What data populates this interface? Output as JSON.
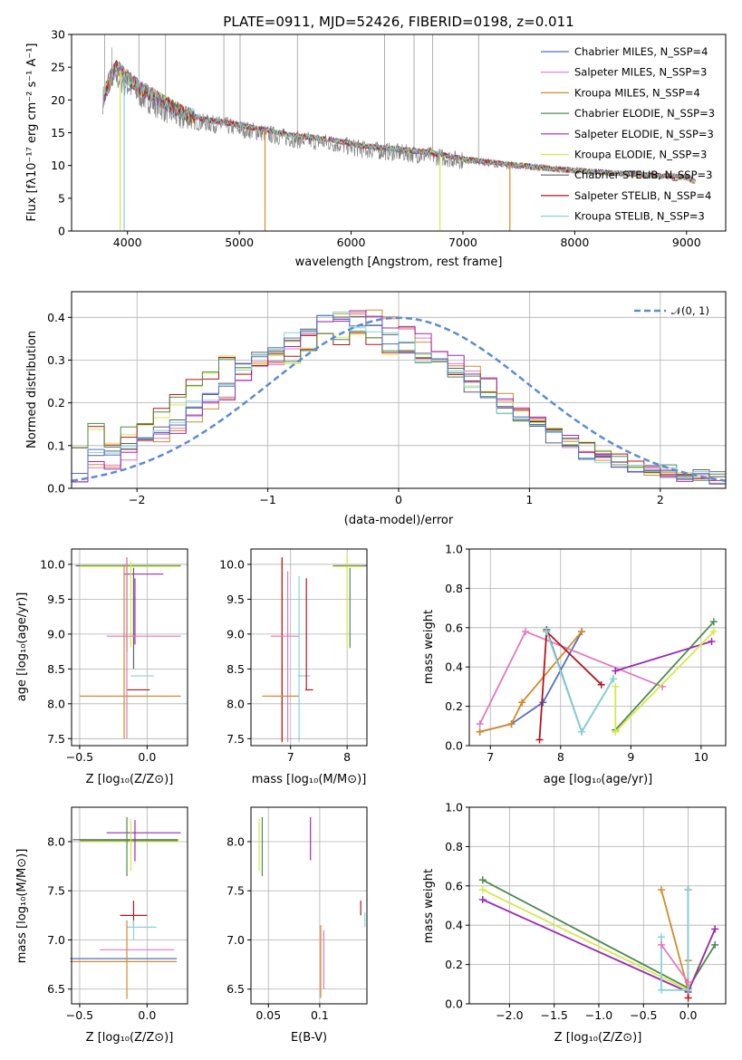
{
  "figure": {
    "title": "PLATE=0911, MJD=52426, FIBERID=0198, z=0.011"
  },
  "chart_data": [
    {
      "id": "spectrum",
      "type": "line",
      "xlabel": "wavelength [Angstrom, rest frame]",
      "ylabel": "Flux [fλ10⁻¹⁷ erg cm⁻² s⁻¹ A⁻¹]",
      "xlim": [
        3500,
        9350
      ],
      "ylim": [
        0,
        30
      ],
      "xticks": [
        4000,
        5000,
        6000,
        7000,
        8000,
        9000
      ],
      "yticks": [
        0,
        5,
        10,
        15,
        20,
        25,
        30
      ],
      "grid": false,
      "legend_loc": "upper right",
      "data_series": {
        "name": "",
        "color": "#808080",
        "x": [
          3780,
          3850,
          3950,
          4100,
          4300,
          4500,
          4700,
          4900,
          5200,
          5500,
          5800,
          6100,
          6400,
          6700,
          7000,
          7400,
          7800,
          8200,
          8600,
          9000,
          9080
        ],
        "y": [
          20,
          24,
          23,
          21,
          19,
          17,
          16.5,
          16,
          15,
          14,
          13.5,
          12.5,
          12,
          11.5,
          10.8,
          10,
          9.5,
          9,
          8.6,
          8.2,
          7.5
        ]
      },
      "series": [
        {
          "name": "Chabrier MILES, N_SSP=4",
          "color": "#4f6fc4"
        },
        {
          "name": "Salpeter MILES, N_SSP=3",
          "color": "#e377c2"
        },
        {
          "name": "Kroupa MILES, N_SSP=4",
          "color": "#d28a2a"
        },
        {
          "name": "Chabrier ELODIE, N_SSP=3",
          "color": "#4e8a4e"
        },
        {
          "name": "Salpeter ELODIE, N_SSP=3",
          "color": "#9b2ab5"
        },
        {
          "name": "Kroupa ELODIE, N_SSP=3",
          "color": "#d6e84a"
        },
        {
          "name": "Chabrier STELIB, N_SSP=3",
          "color": "#606060"
        },
        {
          "name": "Salpeter STELIB, N_SSP=4",
          "color": "#b2161f"
        },
        {
          "name": "Kroupa STELIB, N_SSP=3",
          "color": "#86d3d8"
        }
      ],
      "model_flux": {
        "x": [
          3780,
          3900,
          4100,
          4300,
          4500,
          4700,
          4900,
          5200,
          5500,
          5800,
          6100,
          6400,
          6700,
          7000,
          7400,
          7800,
          8200,
          8600,
          9000,
          9080
        ],
        "y": [
          20,
          25,
          22,
          20,
          18,
          17,
          16.5,
          15.5,
          14.5,
          14,
          13,
          12.5,
          12,
          11,
          10.2,
          9.5,
          9,
          8.6,
          8.2,
          7.5
        ]
      }
    },
    {
      "id": "residuals",
      "type": "line",
      "xlabel": "(data-model)/error",
      "ylabel": "Normed distribution",
      "xlim": [
        -2.5,
        2.5
      ],
      "ylim": [
        0,
        0.46
      ],
      "xticks": [
        -2,
        -1,
        0,
        1,
        2
      ],
      "yticks": [
        0.0,
        0.1,
        0.2,
        0.3,
        0.4
      ],
      "grid": true,
      "legend_loc": "upper right",
      "normal_curve": {
        "name": "𝒩(0, 1)",
        "color": "#5b8bd6",
        "mean": 0,
        "sigma": 1
      },
      "bins": {
        "start": -2.5,
        "width": 0.125
      },
      "hist_shapes": [
        [
          0.03,
          0.05,
          0.06,
          0.08,
          0.1,
          0.12,
          0.14,
          0.17,
          0.2,
          0.22,
          0.26,
          0.29,
          0.3,
          0.33,
          0.36,
          0.38,
          0.4,
          0.42,
          0.41,
          0.39,
          0.37,
          0.35,
          0.32,
          0.3,
          0.28,
          0.25,
          0.22,
          0.19,
          0.16,
          0.13,
          0.11,
          0.09,
          0.07,
          0.06,
          0.05,
          0.04,
          0.03,
          0.03,
          0.02,
          0.02
        ],
        [
          0.11,
          0.14,
          0.11,
          0.13,
          0.16,
          0.18,
          0.21,
          0.24,
          0.27,
          0.3,
          0.28,
          0.3,
          0.32,
          0.3,
          0.33,
          0.35,
          0.34,
          0.36,
          0.35,
          0.32,
          0.31,
          0.3,
          0.29,
          0.27,
          0.25,
          0.22,
          0.19,
          0.17,
          0.15,
          0.13,
          0.11,
          0.1,
          0.08,
          0.07,
          0.06,
          0.05,
          0.04,
          0.04,
          0.03,
          0.03
        ],
        [
          0.05,
          0.08,
          0.09,
          0.1,
          0.12,
          0.14,
          0.16,
          0.19,
          0.22,
          0.25,
          0.28,
          0.31,
          0.33,
          0.36,
          0.38,
          0.39,
          0.4,
          0.39,
          0.37,
          0.35,
          0.33,
          0.31,
          0.29,
          0.27,
          0.24,
          0.21,
          0.18,
          0.16,
          0.14,
          0.12,
          0.1,
          0.08,
          0.07,
          0.06,
          0.05,
          0.04,
          0.04,
          0.03,
          0.03,
          0.02
        ]
      ]
    },
    {
      "id": "age_vs_Z",
      "type": "errorbar",
      "xlabel": "Z [log₁₀(Z/Z⊙)]",
      "ylabel": "age  [log₁₀(age/yr)]",
      "xlim": [
        -0.56,
        0.3
      ],
      "ylim": [
        7.4,
        10.22
      ],
      "xticks": [
        -0.5,
        0.0
      ],
      "yticks": [
        7.5,
        8.0,
        8.5,
        9.0,
        9.5,
        10.0
      ],
      "grid": true
    },
    {
      "id": "age_vs_mass",
      "type": "errorbar",
      "xlabel": "mass [log₁₀(M/M⊙)]",
      "ylabel": "",
      "xlim": [
        6.3,
        8.35
      ],
      "ylim": [
        7.4,
        10.22
      ],
      "xticks": [
        7,
        8
      ],
      "yticks": [
        7.5,
        8.0,
        8.5,
        9.0,
        9.5,
        10.0
      ],
      "grid": true
    },
    {
      "id": "weight_vs_age",
      "type": "line",
      "xlabel": "age  [log₁₀(age/yr)]",
      "ylabel": "mass weight",
      "xlim": [
        6.7,
        10.35
      ],
      "ylim": [
        0,
        1
      ],
      "xticks": [
        7,
        8,
        9,
        10
      ],
      "yticks": [
        0.0,
        0.2,
        0.4,
        0.6,
        0.8,
        1.0
      ],
      "grid": true,
      "series": [
        {
          "name": "Chabrier MILES",
          "x": [
            6.85,
            7.3,
            7.75,
            8.3
          ],
          "y": [
            0.07,
            0.11,
            0.22,
            0.58
          ]
        },
        {
          "name": "Salpeter MILES",
          "x": [
            6.85,
            7.5,
            9.45
          ],
          "y": [
            0.11,
            0.58,
            0.3
          ]
        },
        {
          "name": "Kroupa MILES",
          "x": [
            6.85,
            7.3,
            7.45,
            8.3
          ],
          "y": [
            0.07,
            0.11,
            0.22,
            0.58
          ]
        },
        {
          "name": "Chabrier ELODIE",
          "x": [
            8.78,
            10.18
          ],
          "y": [
            0.08,
            0.63
          ]
        },
        {
          "name": "Salpeter ELODIE",
          "x": [
            8.78,
            10.15
          ],
          "y": [
            0.38,
            0.53
          ]
        },
        {
          "name": "Kroupa ELODIE",
          "x": [
            8.78,
            8.78,
            10.18
          ],
          "y": [
            0.3,
            0.07,
            0.58
          ]
        },
        {
          "name": "Chabrier STELIB",
          "x": [
            7.8,
            8.3,
            8.75
          ],
          "y": [
            0.59,
            0.07,
            0.34
          ]
        },
        {
          "name": "Salpeter STELIB",
          "x": [
            7.7,
            7.8,
            8.58
          ],
          "y": [
            0.03,
            0.58,
            0.31
          ]
        },
        {
          "name": "Kroupa STELIB",
          "x": [
            7.8,
            8.3,
            8.75
          ],
          "y": [
            0.58,
            0.07,
            0.34
          ]
        }
      ]
    },
    {
      "id": "mass_vs_Z",
      "type": "errorbar",
      "xlabel": "Z [log₁₀(Z/Z⊙)]",
      "ylabel": "mass [log₁₀(M/M⊙)]",
      "xlim": [
        -0.56,
        0.3
      ],
      "ylim": [
        6.35,
        8.35
      ],
      "xticks": [
        -0.5,
        0.0
      ],
      "yticks": [
        6.5,
        7.0,
        7.5,
        8.0
      ],
      "grid": true
    },
    {
      "id": "mass_vs_ebv",
      "type": "errorbar",
      "xlabel": "E(B-V)",
      "ylabel": "",
      "xlim": [
        0.033,
        0.146
      ],
      "ylim": [
        6.35,
        8.35
      ],
      "xticks": [
        0.05,
        0.1
      ],
      "yticks": [
        6.5,
        7.0,
        7.5,
        8.0
      ],
      "grid": true
    },
    {
      "id": "weight_vs_Z",
      "type": "line",
      "xlabel": "Z [log₁₀(Z/Z⊙)]",
      "ylabel": "mass weight",
      "xlim": [
        -2.45,
        0.42
      ],
      "ylim": [
        0,
        1
      ],
      "xticks": [
        -2.0,
        -1.5,
        -1.0,
        -0.5,
        0.0
      ],
      "yticks": [
        0.0,
        0.2,
        0.4,
        0.6,
        0.8,
        1.0
      ],
      "grid": true,
      "series": [
        {
          "name": "Chabrier ELODIE",
          "x": [
            -2.3,
            0.0,
            0.3
          ],
          "y": [
            0.63,
            0.08,
            0.3
          ]
        },
        {
          "name": "Kroupa ELODIE",
          "x": [
            -2.3,
            0.0,
            0.3
          ],
          "y": [
            0.58,
            0.07,
            0.38
          ]
        },
        {
          "name": "Salpeter ELODIE",
          "x": [
            -2.3,
            0.0,
            0.3
          ],
          "y": [
            0.53,
            0.06,
            0.38
          ]
        },
        {
          "name": "Kroupa MILES",
          "x": [
            -0.3,
            0.0,
            0.0
          ],
          "y": [
            0.58,
            0.07,
            0.22
          ]
        },
        {
          "name": "Salpeter STELIB",
          "x": [
            0.0,
            0.0
          ],
          "y": [
            0.03,
            0.58
          ]
        },
        {
          "name": "Kroupa STELIB",
          "x": [
            -0.3,
            -0.3,
            0.0,
            0.0
          ],
          "y": [
            0.34,
            0.07,
            0.07,
            0.58
          ]
        },
        {
          "name": "Salpeter MILES",
          "x": [
            -0.3,
            0.0
          ],
          "y": [
            0.3,
            0.11
          ]
        }
      ]
    }
  ]
}
